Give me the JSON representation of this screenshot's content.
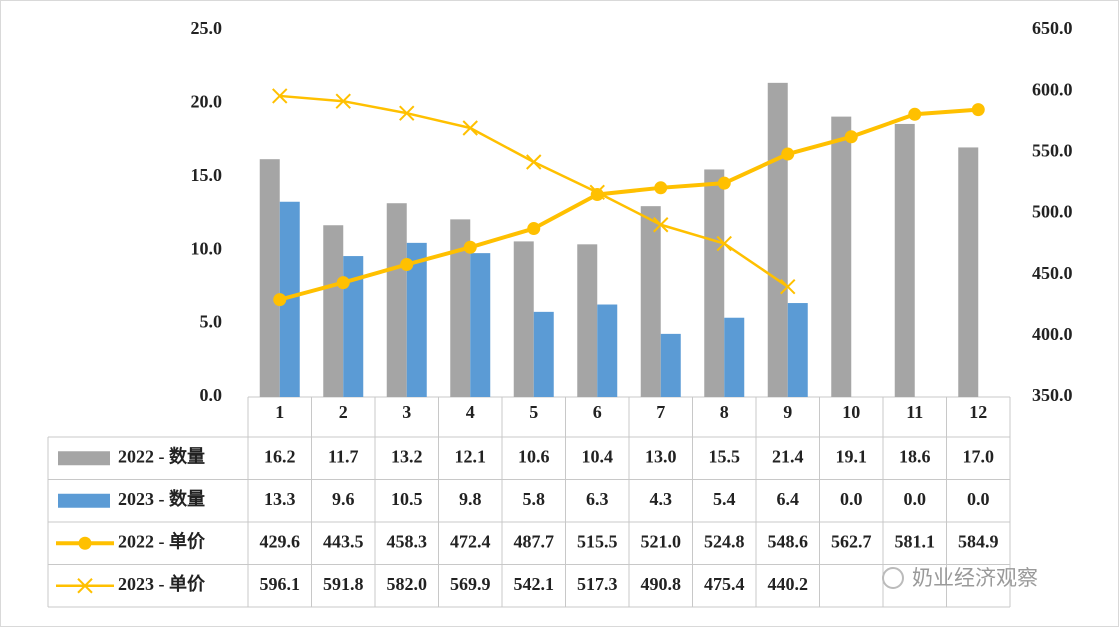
{
  "chart_data": {
    "type": "combo",
    "categories": [
      "1",
      "2",
      "3",
      "4",
      "5",
      "6",
      "7",
      "8",
      "9",
      "10",
      "11",
      "12"
    ],
    "ylim": [
      0,
      25
    ],
    "yticks": [
      {
        "value": 0,
        "label": "0.0"
      },
      {
        "value": 5,
        "label": "5.0"
      },
      {
        "value": 10,
        "label": "10.0"
      },
      {
        "value": 15,
        "label": "15.0"
      },
      {
        "value": 20,
        "label": "20.0"
      },
      {
        "value": 25,
        "label": "25.0"
      }
    ],
    "y2lim": [
      350,
      650
    ],
    "y2ticks": [
      {
        "value": 350,
        "label": "350.0"
      },
      {
        "value": 400,
        "label": "400.0"
      },
      {
        "value": 450,
        "label": "450.0"
      },
      {
        "value": 500,
        "label": "500.0"
      },
      {
        "value": 550,
        "label": "550.0"
      },
      {
        "value": 600,
        "label": "600.0"
      },
      {
        "value": 650,
        "label": "650.0"
      }
    ],
    "series": [
      {
        "name": "2022 - 数量",
        "type": "bar",
        "marker": "none",
        "color": "#a5a5a5",
        "values": [
          16.2,
          11.7,
          13.2,
          12.1,
          10.6,
          10.4,
          13.0,
          15.5,
          21.4,
          19.1,
          18.6,
          17.0
        ],
        "value_labels": [
          "16.2",
          "11.7",
          "13.2",
          "12.1",
          "10.6",
          "10.4",
          "13.0",
          "15.5",
          "21.4",
          "19.1",
          "18.6",
          "17.0"
        ]
      },
      {
        "name": "2023 - 数量",
        "type": "bar",
        "marker": "none",
        "color": "#5b9bd5",
        "values": [
          13.3,
          9.6,
          10.5,
          9.8,
          5.8,
          6.3,
          4.3,
          5.4,
          6.4,
          0.0,
          0.0,
          0.0
        ],
        "value_labels": [
          "13.3",
          "9.6",
          "10.5",
          "9.8",
          "5.8",
          "6.3",
          "4.3",
          "5.4",
          "6.4",
          "0.0",
          "0.0",
          "0.0"
        ]
      },
      {
        "name": "2022 - 单价",
        "type": "line",
        "marker": "circle",
        "axis": "y2",
        "color": "#ffc000",
        "values": [
          429.6,
          443.5,
          458.3,
          472.4,
          487.7,
          515.5,
          521.0,
          524.8,
          548.6,
          562.7,
          581.1,
          584.9
        ],
        "value_labels": [
          "429.6",
          "443.5",
          "458.3",
          "472.4",
          "487.7",
          "515.5",
          "521.0",
          "524.8",
          "548.6",
          "562.7",
          "581.1",
          "584.9"
        ]
      },
      {
        "name": "2023 - 单价",
        "type": "line",
        "marker": "x",
        "axis": "y2",
        "color": "#ffc000",
        "values": [
          596.1,
          591.8,
          582.0,
          569.9,
          542.1,
          517.3,
          490.8,
          475.4,
          440.2,
          null,
          null,
          null
        ],
        "value_labels": [
          "596.1",
          "591.8",
          "582.0",
          "569.9",
          "542.1",
          "517.3",
          "490.8",
          "475.4",
          "440.2",
          null,
          null,
          null
        ]
      }
    ],
    "watermark": "奶业经济观察"
  }
}
